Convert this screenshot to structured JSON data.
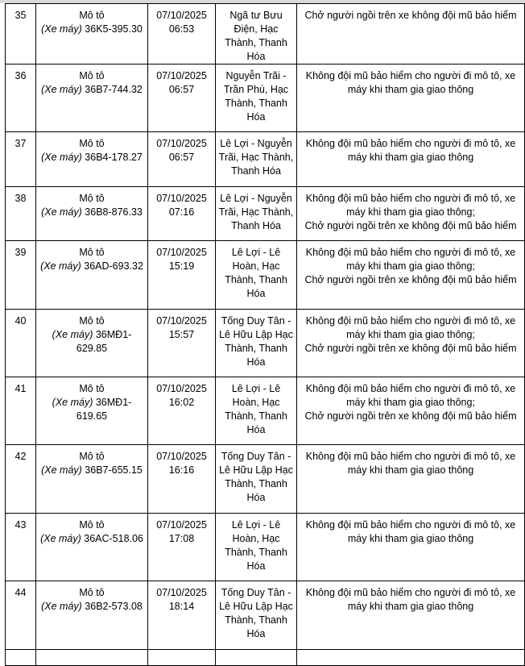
{
  "rows": [
    {
      "no": "35",
      "type": "Mô tô",
      "subtype": "(Xe máy)",
      "plate": "36K5-395.30",
      "date": "07/10/2025",
      "time": "06:53",
      "place": "Ngã tư Bưu Điện, Hạc Thành, Thanh Hóa",
      "violation": [
        "Chở người ngồi trên xe không đội mũ bảo hiểm"
      ]
    },
    {
      "no": "36",
      "type": "Mô tô",
      "subtype": "(Xe máy)",
      "plate": "36B7-744.32",
      "date": "07/10/2025",
      "time": "06:57",
      "place": "Nguyễn Trãi - Trần Phú, Hạc Thành, Thanh Hóa",
      "violation": [
        "Không đội mũ bảo hiểm cho người đi mô tô, xe máy khi tham gia giao thông"
      ]
    },
    {
      "no": "37",
      "type": "Mô tô",
      "subtype": "(Xe máy)",
      "plate": "36B4-178.27",
      "date": "07/10/2025",
      "time": "06:57",
      "place": "Lê Lợi - Nguyễn Trãi, Hạc Thành, Thanh Hóa",
      "violation": [
        "Không đội mũ bảo hiểm cho người đi mô tô, xe máy khi tham gia giao thông"
      ]
    },
    {
      "no": "38",
      "type": "Mô tô",
      "subtype": "(Xe máy)",
      "plate": "36B8-876.33",
      "date": "07/10/2025",
      "time": "07:16",
      "place": "Lê Lợi - Nguyễn Trãi, Hạc Thành, Thanh Hóa",
      "violation": [
        "Không đội mũ bảo hiểm cho người đi mô tô, xe máy khi tham gia giao thông;",
        "Chở người ngồi trên xe không đội mũ bảo hiểm"
      ]
    },
    {
      "no": "39",
      "type": "Mô tô",
      "subtype": "(Xe máy)",
      "plate": "36AD-693.32",
      "date": "07/10/2025",
      "time": "15:19",
      "place": "Lê Lợi - Lê Hoàn, Hạc Thành, Thanh Hóa",
      "violation": [
        "Không đội mũ bảo hiểm cho người đi mô tô, xe máy khi tham gia giao thông;",
        "Chở người ngồi trên xe không đội mũ bảo hiểm"
      ]
    },
    {
      "no": "40",
      "type": "Mô tô",
      "subtype": "(Xe máy)",
      "plate": "36MĐ1-629.85",
      "date": "07/10/2025",
      "time": "15:57",
      "place": "Tống Duy Tân - Lê Hữu Lập Hạc Thành, Thanh Hóa",
      "violation": [
        "Không đội mũ bảo hiểm cho người đi mô tô, xe máy khi tham gia giao thông;",
        "Chở người ngồi trên xe không đội mũ bảo hiểm"
      ]
    },
    {
      "no": "41",
      "type": "Mô tô",
      "subtype": "(Xe máy)",
      "plate": "36MĐ1-619.65",
      "date": "07/10/2025",
      "time": "16:02",
      "place": "Lê Lợi - Lê Hoàn, Hạc Thành, Thanh Hóa",
      "violation": [
        "Không đội mũ bảo hiểm cho người đi mô tô, xe máy khi tham gia giao thông;",
        "Chở người ngồi trên xe không đội mũ bảo hiểm"
      ]
    },
    {
      "no": "42",
      "type": "Mô tô",
      "subtype": "(Xe máy)",
      "plate": "36B7-655.15",
      "date": "07/10/2025",
      "time": "16:16",
      "place": "Tống Duy Tân - Lê Hữu Lập Hạc Thành, Thanh Hóa",
      "violation": [
        "Không đội mũ bảo hiểm cho người đi mô tô, xe máy khi tham gia giao thông"
      ]
    },
    {
      "no": "43",
      "type": "Mô tô",
      "subtype": "(Xe máy)",
      "plate": "36AC-518.06",
      "date": "07/10/2025",
      "time": "17:08",
      "place": "Lê Lợi - Lê Hoàn, Hạc Thành, Thanh Hóa",
      "violation": [
        "Không đội mũ bảo hiểm cho người đi mô tô, xe máy khi tham gia giao thông"
      ]
    },
    {
      "no": "44",
      "type": "Mô tô",
      "subtype": "(Xe máy)",
      "plate": "36B2-573.08",
      "date": "07/10/2025",
      "time": "18:14",
      "place": "Tống Duy Tân - Lê Hữu Lập Hạc Thành, Thanh Hóa",
      "violation": [
        "Không đội mũ bảo hiểm cho người đi mô tô, xe máy khi tham gia giao thông"
      ]
    }
  ]
}
